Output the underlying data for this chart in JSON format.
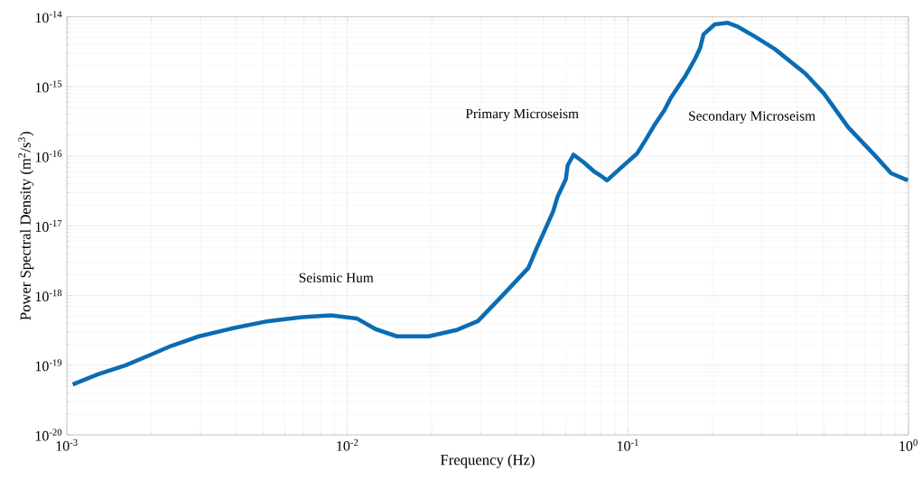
{
  "chart_data": {
    "type": "line",
    "xlabel": "Frequency (Hz)",
    "ylabel": "Power Spectral Density (m$^{2}$/s$^{3}$)",
    "log": "xy",
    "grid": true,
    "marker": "none",
    "line_style": "solid",
    "xlim": [
      0.001,
      1
    ],
    "ylim": [
      1e-20,
      1e-14
    ],
    "xticks": [
      {
        "value": 0.001,
        "label": "10$^{-3}$"
      },
      {
        "value": 0.01,
        "label": "10$^{-2}$"
      },
      {
        "value": 0.1,
        "label": "10$^{-1}$"
      },
      {
        "value": 1,
        "label": "10$^{0}$"
      }
    ],
    "yticks": [
      {
        "value": 1e-20,
        "label": "10$^{-20}$"
      },
      {
        "value": 1e-19,
        "label": "10$^{-19}$"
      },
      {
        "value": 1e-18,
        "label": "10$^{-18}$"
      },
      {
        "value": 1e-17,
        "label": "10$^{-17}$"
      },
      {
        "value": 1e-16,
        "label": "10$^{-16}$"
      },
      {
        "value": 1e-15,
        "label": "10$^{-15}$"
      },
      {
        "value": 1e-14,
        "label": "10$^{-14}$"
      }
    ],
    "annotations": [
      "Seismic Hum",
      "Primary Microseism",
      "Secondary Microseism"
    ],
    "series": [
      {
        "color": "#0a6cb4",
        "x": [
          0.00105,
          0.00129,
          0.00162,
          0.00198,
          0.00236,
          0.00296,
          0.00391,
          0.00522,
          0.00689,
          0.00874,
          0.0108,
          0.0126,
          0.015,
          0.0195,
          0.0245,
          0.0292,
          0.0357,
          0.0442,
          0.0471,
          0.0501,
          0.0541,
          0.0561,
          0.0601,
          0.061,
          0.064,
          0.0695,
          0.0759,
          0.0808,
          0.0843,
          0.0951,
          0.108,
          0.116,
          0.125,
          0.135,
          0.142,
          0.161,
          0.174,
          0.181,
          0.186,
          0.204,
          0.227,
          0.247,
          0.284,
          0.334,
          0.429,
          0.499,
          0.61,
          0.764,
          0.867,
          0.995
        ],
        "values": [
          5.3e-20,
          7.4e-20,
          1e-19,
          1.4e-19,
          1.9e-19,
          2.6e-19,
          3.4e-19,
          4.3e-19,
          4.9e-19,
          5.2e-19,
          4.7e-19,
          3.3e-19,
          2.6e-19,
          2.6e-19,
          3.2e-19,
          4.3e-19,
          1e-18,
          2.5e-18,
          4.6e-18,
          8e-18,
          1.6e-17,
          2.6e-17,
          4.7e-17,
          7.4e-17,
          1.05e-16,
          8.2e-17,
          6e-17,
          5.1e-17,
          4.5e-17,
          7e-17,
          1.1e-16,
          1.75e-16,
          2.9e-16,
          4.6e-16,
          6.8e-16,
          1.46e-15,
          2.55e-15,
          3.6e-15,
          5.6e-15,
          7.8e-15,
          8.2e-15,
          7.2e-15,
          5.2e-15,
          3.45e-15,
          1.54e-15,
          8e-16,
          2.6e-16,
          1e-16,
          5.7e-17,
          4.5e-17
        ]
      }
    ]
  }
}
